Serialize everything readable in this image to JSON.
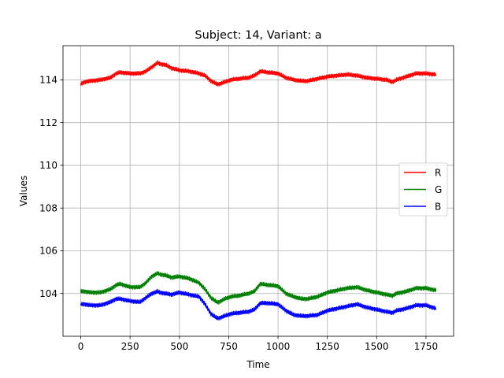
{
  "chart_data": {
    "type": "line",
    "title": "Subject: 14, Variant: a",
    "xlabel": "Time",
    "ylabel": "Values",
    "xlim": [
      -90,
      1890
    ],
    "ylim": [
      102.0,
      115.6
    ],
    "xticks": [
      0,
      250,
      500,
      750,
      1000,
      1250,
      1500,
      1750
    ],
    "yticks": [
      104,
      106,
      108,
      110,
      112,
      114
    ],
    "grid": true,
    "legend_position": "center-right",
    "series": [
      {
        "name": "R",
        "color": "#ff0000",
        "x": [
          0,
          20,
          50,
          100,
          150,
          180,
          200,
          250,
          300,
          330,
          360,
          390,
          400,
          430,
          460,
          500,
          550,
          600,
          630,
          660,
          690,
          700,
          730,
          760,
          800,
          850,
          880,
          910,
          950,
          1000,
          1040,
          1080,
          1120,
          1150,
          1200,
          1250,
          1300,
          1350,
          1400,
          1450,
          1500,
          1550,
          1580,
          1600,
          1650,
          1700,
          1750,
          1800
        ],
        "values": [
          113.8,
          113.9,
          113.95,
          114.0,
          114.1,
          114.3,
          114.35,
          114.3,
          114.3,
          114.4,
          114.6,
          114.8,
          114.75,
          114.7,
          114.55,
          114.45,
          114.4,
          114.3,
          114.2,
          113.95,
          113.8,
          113.8,
          113.9,
          114.0,
          114.05,
          114.1,
          114.2,
          114.4,
          114.35,
          114.3,
          114.1,
          114.0,
          113.95,
          113.95,
          114.05,
          114.15,
          114.2,
          114.25,
          114.2,
          114.1,
          114.05,
          114.0,
          113.9,
          114.0,
          114.15,
          114.3,
          114.3,
          114.25
        ]
      },
      {
        "name": "G",
        "color": "#008000",
        "x": [
          0,
          20,
          50,
          100,
          150,
          180,
          200,
          250,
          300,
          330,
          360,
          390,
          400,
          430,
          460,
          500,
          550,
          600,
          630,
          660,
          690,
          700,
          730,
          760,
          800,
          850,
          880,
          910,
          950,
          1000,
          1040,
          1080,
          1120,
          1150,
          1200,
          1250,
          1300,
          1350,
          1400,
          1450,
          1500,
          1550,
          1580,
          1600,
          1650,
          1700,
          1750,
          1800
        ],
        "values": [
          104.1,
          104.1,
          104.05,
          104.05,
          104.2,
          104.4,
          104.45,
          104.3,
          104.3,
          104.5,
          104.8,
          104.95,
          104.9,
          104.85,
          104.75,
          104.8,
          104.7,
          104.5,
          104.2,
          103.8,
          103.6,
          103.6,
          103.75,
          103.85,
          103.9,
          104.0,
          104.1,
          104.45,
          104.4,
          104.35,
          104.0,
          103.85,
          103.75,
          103.75,
          103.85,
          104.05,
          104.15,
          104.25,
          104.3,
          104.15,
          104.05,
          103.95,
          103.9,
          104.0,
          104.1,
          104.25,
          104.25,
          104.15
        ]
      },
      {
        "name": "B",
        "color": "#0000ff",
        "x": [
          0,
          20,
          50,
          100,
          150,
          180,
          200,
          250,
          300,
          330,
          360,
          390,
          400,
          430,
          460,
          500,
          550,
          600,
          630,
          660,
          690,
          700,
          730,
          760,
          800,
          850,
          880,
          910,
          950,
          1000,
          1040,
          1080,
          1120,
          1150,
          1200,
          1250,
          1300,
          1350,
          1400,
          1450,
          1500,
          1550,
          1580,
          1600,
          1650,
          1700,
          1750,
          1800
        ],
        "values": [
          103.5,
          103.5,
          103.45,
          103.45,
          103.6,
          103.75,
          103.75,
          103.65,
          103.6,
          103.8,
          104.0,
          104.1,
          104.05,
          104.0,
          103.95,
          104.05,
          103.95,
          103.85,
          103.5,
          103.05,
          102.85,
          102.85,
          102.95,
          103.05,
          103.1,
          103.15,
          103.25,
          103.55,
          103.55,
          103.5,
          103.2,
          103.0,
          102.95,
          102.95,
          103.0,
          103.2,
          103.3,
          103.4,
          103.5,
          103.35,
          103.25,
          103.15,
          103.1,
          103.2,
          103.3,
          103.45,
          103.45,
          103.3
        ]
      }
    ]
  }
}
